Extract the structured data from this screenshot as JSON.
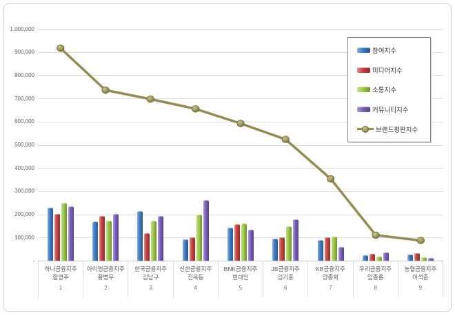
{
  "chart_data": {
    "type": "bar+line",
    "title": "",
    "xlabel": "",
    "ylabel": "",
    "y_max": 1000000,
    "ylim": [
      0,
      1000000
    ],
    "grid": true,
    "legend_position": "upper right",
    "y_ticks": [
      "1,000,000",
      "900,000",
      "800,000",
      "700,000",
      "600,000",
      "500,000",
      "400,000",
      "300,000",
      "200,000",
      "100,000",
      "-"
    ],
    "categories": [
      {
        "company": "하나금융지주",
        "ceo": "함영주",
        "rank": "1"
      },
      {
        "company": "아이엠금융지주",
        "ceo": "황병우",
        "rank": "2"
      },
      {
        "company": "한국금융지주",
        "ceo": "김남구",
        "rank": "3"
      },
      {
        "company": "신한금융지주",
        "ceo": "진옥동",
        "rank": "4"
      },
      {
        "company": "BNK금융지주",
        "ceo": "빈대인",
        "rank": "5"
      },
      {
        "company": "JB금융지주",
        "ceo": "김기홍",
        "rank": "6"
      },
      {
        "company": "KB금융지주",
        "ceo": "양종희",
        "rank": "7"
      },
      {
        "company": "우리금융지주",
        "ceo": "임종룡",
        "rank": "8"
      },
      {
        "company": "농협금융지주",
        "ceo": "이석준",
        "rank": "9"
      }
    ],
    "series": [
      {
        "name": "참여지수",
        "type": "bar",
        "color": "#3d7ac6",
        "values": [
          229000,
          170000,
          214000,
          93000,
          141000,
          95000,
          90000,
          24000,
          26000
        ]
      },
      {
        "name": "미디어지수",
        "type": "bar",
        "color": "#c8403c",
        "values": [
          203000,
          192000,
          118000,
          102000,
          157000,
          102000,
          100000,
          30000,
          33000
        ]
      },
      {
        "name": "소통지수",
        "type": "bar",
        "color": "#9cca43",
        "values": [
          250000,
          172000,
          171000,
          200000,
          159000,
          148000,
          105000,
          19000,
          15000
        ]
      },
      {
        "name": "커뮤니티지수",
        "type": "bar",
        "color": "#7a5cbe",
        "values": [
          235000,
          202000,
          194000,
          260000,
          135000,
          178000,
          58000,
          37000,
          13000
        ]
      },
      {
        "name": "브랜드평판지수",
        "type": "line",
        "color": "#948b52",
        "values": [
          917000,
          736000,
          697000,
          655000,
          592000,
          523000,
          353000,
          110000,
          87000
        ]
      }
    ]
  },
  "colors": {
    "gridline": "#dcdcdc",
    "axis_text": "#595959",
    "legend_border": "#7f7f7f",
    "background": "#ffffff"
  }
}
